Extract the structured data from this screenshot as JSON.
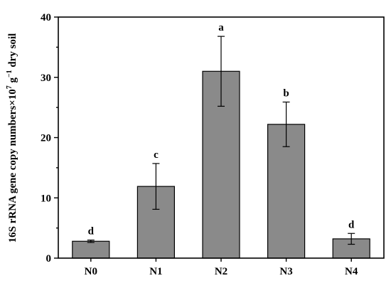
{
  "chart_data": {
    "type": "bar",
    "categories": [
      "N0",
      "N1",
      "N2",
      "N3",
      "N4"
    ],
    "values": [
      2.8,
      11.9,
      31.0,
      22.2,
      3.2
    ],
    "errors": [
      0.2,
      3.8,
      5.8,
      3.7,
      0.9
    ],
    "significance": [
      "d",
      "c",
      "a",
      "b",
      "d"
    ],
    "ylabel_main": "16S rRNA gene copy numbers×10",
    "ylabel_sup1": "7",
    "ylabel_mid": " g",
    "ylabel_sup2": "−1",
    "ylabel_end": " dry soil",
    "ylim": [
      0,
      40
    ],
    "yticks": [
      0,
      10,
      20,
      30,
      40
    ],
    "grid": false,
    "colors": {
      "bar": "#8a8a8a",
      "axis": "#000000"
    }
  }
}
